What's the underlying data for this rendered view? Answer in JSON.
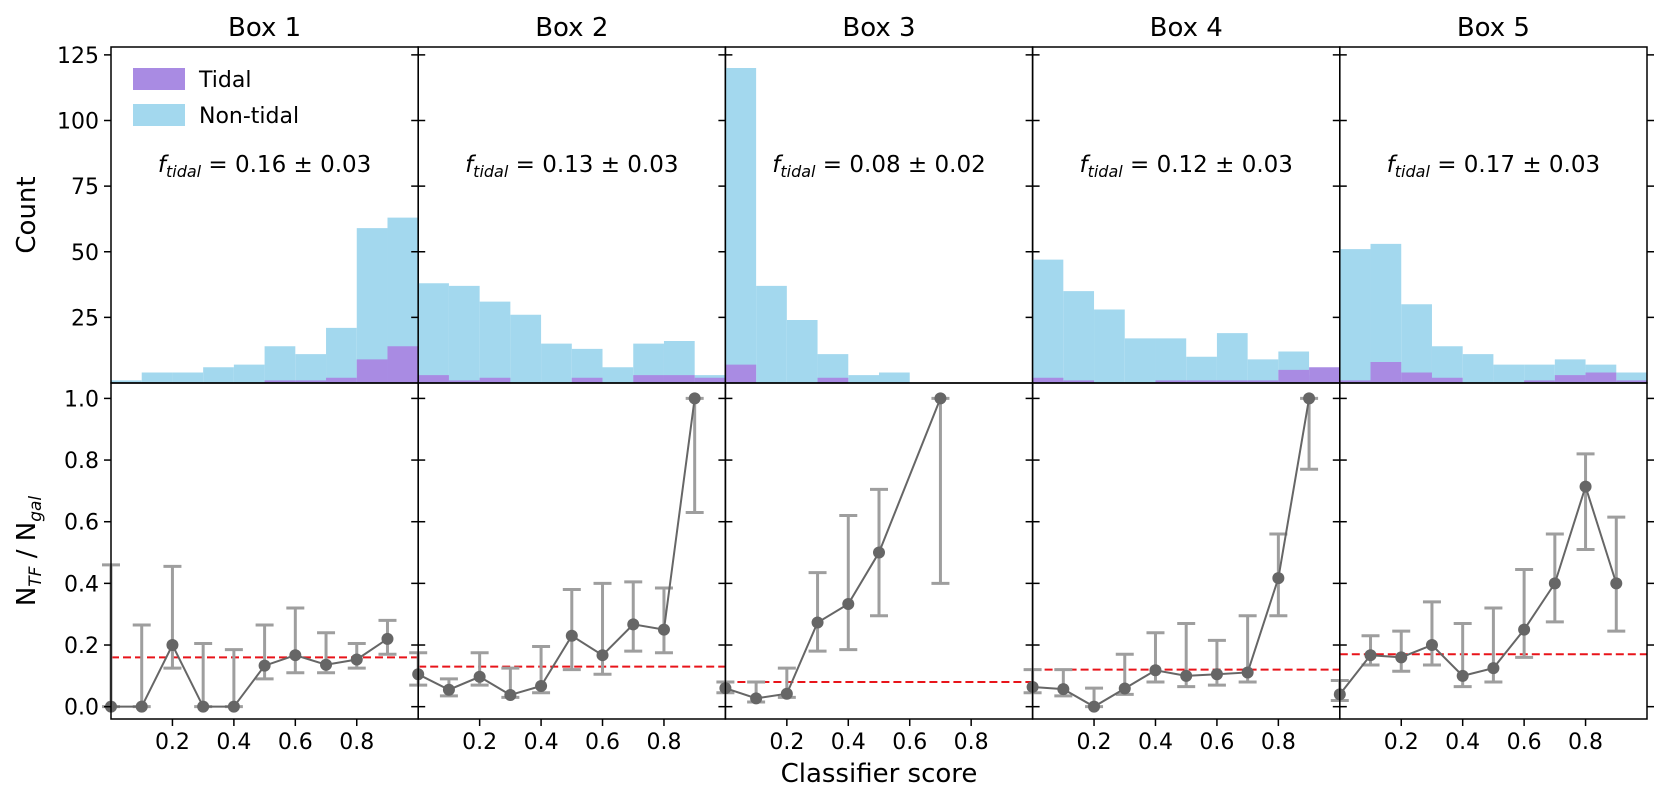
{
  "chart_data": {
    "type": "bar",
    "layout": "2x5 grid, shared x axis",
    "xlabel": "Classifier score",
    "top_ylabel": "Count",
    "bottom_ylabel_main": "N",
    "bottom_ylabel_sub1": "TF",
    "bottom_ylabel_mid": " / N",
    "bottom_ylabel_sub2": "gal",
    "xlim": [
      0,
      1
    ],
    "top_ylim": [
      0,
      128
    ],
    "bottom_ylim": [
      -0.04,
      1.05
    ],
    "x_ticks": [
      0.2,
      0.4,
      0.6,
      0.8
    ],
    "x_tick_labels": [
      "0.2",
      "0.4",
      "0.6",
      "0.8"
    ],
    "top_y_ticks": [
      25,
      50,
      75,
      100,
      125
    ],
    "top_y_tick_labels": [
      "25",
      "50",
      "75",
      "100",
      "125"
    ],
    "bottom_y_ticks": [
      0,
      0.2,
      0.4,
      0.6,
      0.8,
      1.0
    ],
    "bottom_y_tick_labels": [
      "0.0",
      "0.2",
      "0.4",
      "0.6",
      "0.8",
      "1.0"
    ],
    "legend": {
      "position": "top-left of first panel",
      "entries": [
        {
          "label": "Tidal",
          "color": "#a98be3"
        },
        {
          "label": "Non-tidal",
          "color": "#a3d8ee"
        }
      ]
    },
    "colors": {
      "tidal": "#a98be3",
      "nontidal": "#a3d8ee",
      "line": "#666666",
      "errorbar": "#9e9e9e",
      "reference_line": "#e8141a"
    },
    "bins": [
      0.0,
      0.1,
      0.2,
      0.3,
      0.4,
      0.5,
      0.6,
      0.7,
      0.8,
      0.9,
      1.0
    ],
    "panels": [
      {
        "title": "Box 1",
        "ftidal_symbol": "f",
        "ftidal_sub": "tidal",
        "ftidal_text": " = 0.16 ± 0.03",
        "ftidal": 0.16,
        "nontidal_counts": [
          1,
          4,
          4,
          6,
          7,
          14,
          11,
          21,
          59,
          63
        ],
        "tidal_counts": [
          0,
          0,
          0,
          0,
          0,
          1,
          1,
          2,
          9,
          14
        ],
        "points": [
          {
            "x": 0.0,
            "y": 0.0,
            "lo": 0.0,
            "hi": 0.46
          },
          {
            "x": 0.1,
            "y": 0.0,
            "lo": 0.0,
            "hi": 0.265
          },
          {
            "x": 0.2,
            "y": 0.2,
            "lo": 0.125,
            "hi": 0.455
          },
          {
            "x": 0.3,
            "y": 0.0,
            "lo": 0.0,
            "hi": 0.205
          },
          {
            "x": 0.4,
            "y": 0.0,
            "lo": 0.0,
            "hi": 0.185
          },
          {
            "x": 0.5,
            "y": 0.133,
            "lo": 0.09,
            "hi": 0.265
          },
          {
            "x": 0.6,
            "y": 0.167,
            "lo": 0.11,
            "hi": 0.32
          },
          {
            "x": 0.7,
            "y": 0.136,
            "lo": 0.11,
            "hi": 0.24
          },
          {
            "x": 0.8,
            "y": 0.153,
            "lo": 0.125,
            "hi": 0.205
          },
          {
            "x": 0.9,
            "y": 0.22,
            "lo": 0.17,
            "hi": 0.28
          }
        ]
      },
      {
        "title": "Box 2",
        "ftidal_symbol": "f",
        "ftidal_sub": "tidal",
        "ftidal_text": " = 0.13 ± 0.03",
        "ftidal": 0.13,
        "nontidal_counts": [
          38,
          37,
          31,
          26,
          15,
          13,
          6,
          15,
          16,
          3
        ],
        "tidal_counts": [
          3,
          1,
          2,
          0,
          0,
          2,
          0,
          3,
          3,
          2
        ],
        "points": [
          {
            "x": 0.0,
            "y": 0.105,
            "lo": 0.07,
            "hi": 0.175
          },
          {
            "x": 0.1,
            "y": 0.055,
            "lo": 0.035,
            "hi": 0.09
          },
          {
            "x": 0.2,
            "y": 0.097,
            "lo": 0.07,
            "hi": 0.175
          },
          {
            "x": 0.3,
            "y": 0.038,
            "lo": 0.03,
            "hi": 0.125
          },
          {
            "x": 0.4,
            "y": 0.067,
            "lo": 0.045,
            "hi": 0.195
          },
          {
            "x": 0.5,
            "y": 0.23,
            "lo": 0.12,
            "hi": 0.38
          },
          {
            "x": 0.6,
            "y": 0.167,
            "lo": 0.105,
            "hi": 0.4
          },
          {
            "x": 0.7,
            "y": 0.267,
            "lo": 0.18,
            "hi": 0.405
          },
          {
            "x": 0.8,
            "y": 0.25,
            "lo": 0.175,
            "hi": 0.385
          },
          {
            "x": 0.9,
            "y": 1.0,
            "lo": 0.63,
            "hi": 1.0
          }
        ]
      },
      {
        "title": "Box 3",
        "ftidal_symbol": "f",
        "ftidal_sub": "tidal",
        "ftidal_text": " = 0.08 ± 0.02",
        "ftidal": 0.08,
        "nontidal_counts": [
          120,
          37,
          24,
          11,
          3,
          4,
          0,
          0,
          0,
          0
        ],
        "tidal_counts": [
          7,
          0,
          0,
          2,
          0,
          0,
          0,
          0,
          0,
          0
        ],
        "points": [
          {
            "x": 0.0,
            "y": 0.06,
            "lo": 0.045,
            "hi": 0.08
          },
          {
            "x": 0.1,
            "y": 0.027,
            "lo": 0.015,
            "hi": 0.08
          },
          {
            "x": 0.2,
            "y": 0.042,
            "lo": 0.03,
            "hi": 0.125
          },
          {
            "x": 0.3,
            "y": 0.273,
            "lo": 0.18,
            "hi": 0.435
          },
          {
            "x": 0.4,
            "y": 0.333,
            "lo": 0.185,
            "hi": 0.62
          },
          {
            "x": 0.5,
            "y": 0.5,
            "lo": 0.295,
            "hi": 0.705
          },
          {
            "x": 0.7,
            "y": 1.0,
            "lo": 0.4,
            "hi": 1.0
          }
        ]
      },
      {
        "title": "Box 4",
        "ftidal_symbol": "f",
        "ftidal_sub": "tidal",
        "ftidal_text": " = 0.12 ± 0.03",
        "ftidal": 0.12,
        "nontidal_counts": [
          47,
          35,
          28,
          17,
          17,
          10,
          19,
          9,
          12,
          3
        ],
        "tidal_counts": [
          2,
          1,
          0,
          0,
          1,
          1,
          1,
          1,
          5,
          6
        ],
        "points": [
          {
            "x": 0.0,
            "y": 0.064,
            "lo": 0.045,
            "hi": 0.12
          },
          {
            "x": 0.1,
            "y": 0.057,
            "lo": 0.035,
            "hi": 0.12
          },
          {
            "x": 0.2,
            "y": 0.0,
            "lo": 0.0,
            "hi": 0.06
          },
          {
            "x": 0.3,
            "y": 0.059,
            "lo": 0.04,
            "hi": 0.17
          },
          {
            "x": 0.4,
            "y": 0.118,
            "lo": 0.08,
            "hi": 0.24
          },
          {
            "x": 0.5,
            "y": 0.1,
            "lo": 0.065,
            "hi": 0.27
          },
          {
            "x": 0.6,
            "y": 0.105,
            "lo": 0.07,
            "hi": 0.215
          },
          {
            "x": 0.7,
            "y": 0.111,
            "lo": 0.08,
            "hi": 0.295
          },
          {
            "x": 0.8,
            "y": 0.417,
            "lo": 0.295,
            "hi": 0.56
          },
          {
            "x": 0.9,
            "y": 1.0,
            "lo": 0.77,
            "hi": 1.0
          }
        ]
      },
      {
        "title": "Box 5",
        "ftidal_symbol": "f",
        "ftidal_sub": "tidal",
        "ftidal_text": " = 0.17 ± 0.03",
        "ftidal": 0.17,
        "nontidal_counts": [
          51,
          53,
          30,
          14,
          11,
          7,
          7,
          9,
          7,
          4
        ],
        "tidal_counts": [
          1,
          8,
          4,
          2,
          0,
          0,
          1,
          3,
          4,
          1
        ],
        "points": [
          {
            "x": 0.0,
            "y": 0.04,
            "lo": 0.02,
            "hi": 0.085
          },
          {
            "x": 0.1,
            "y": 0.167,
            "lo": 0.135,
            "hi": 0.23
          },
          {
            "x": 0.2,
            "y": 0.16,
            "lo": 0.115,
            "hi": 0.245
          },
          {
            "x": 0.3,
            "y": 0.2,
            "lo": 0.135,
            "hi": 0.34
          },
          {
            "x": 0.4,
            "y": 0.1,
            "lo": 0.065,
            "hi": 0.27
          },
          {
            "x": 0.5,
            "y": 0.125,
            "lo": 0.08,
            "hi": 0.32
          },
          {
            "x": 0.6,
            "y": 0.25,
            "lo": 0.16,
            "hi": 0.445
          },
          {
            "x": 0.7,
            "y": 0.4,
            "lo": 0.275,
            "hi": 0.56
          },
          {
            "x": 0.8,
            "y": 0.714,
            "lo": 0.51,
            "hi": 0.82
          },
          {
            "x": 0.9,
            "y": 0.4,
            "lo": 0.245,
            "hi": 0.615
          }
        ]
      }
    ]
  }
}
